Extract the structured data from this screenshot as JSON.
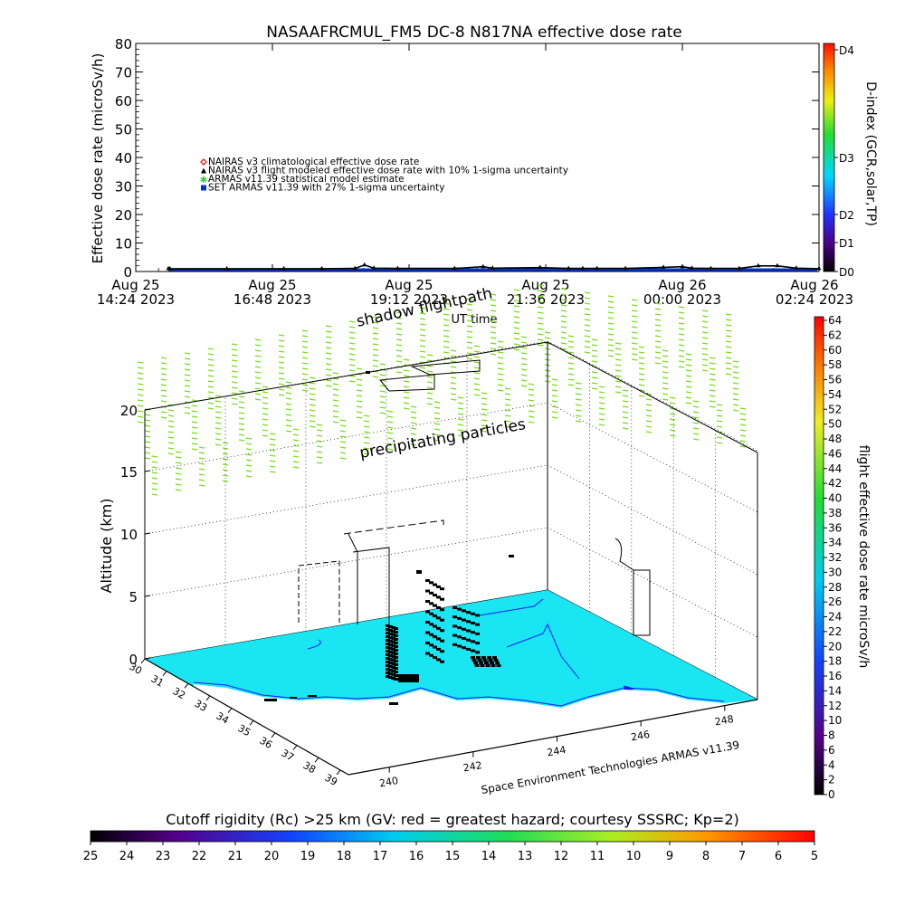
{
  "chart_data": [
    {
      "type": "line",
      "title": "NASAAFRCMUL_FM5 DC-8   N817NA effective dose rate",
      "ylabel": "Effective dose rate (microSv/h)",
      "xlabel": "UT time",
      "ylim": [
        0,
        80
      ],
      "yticks": [
        "0",
        "10",
        "20",
        "30",
        "40",
        "50",
        "60",
        "70",
        "80"
      ],
      "xticks": [
        {
          "date": "Aug 25",
          "time": "14:24 2023"
        },
        {
          "date": "Aug 25",
          "time": "16:48 2023"
        },
        {
          "date": "Aug 25",
          "time": "19:12 2023"
        },
        {
          "date": "Aug 25",
          "time": "21:36 2023"
        },
        {
          "date": "Aug 26",
          "time": "00:00 2023"
        },
        {
          "date": "Aug 26",
          "time": "02:24 2023"
        }
      ],
      "legend": [
        {
          "label": "NAIRAS v3 climatological effective dose rate",
          "color": "#ff0000",
          "symbol": "diamond"
        },
        {
          "label": "NAIRAS v3 flight modeled effective dose rate with 10% 1-sigma uncertainty",
          "color": "#000000",
          "symbol": "triangle"
        },
        {
          "label": "ARMAS v11.39 statistical model estimate",
          "color": "#33cc33",
          "symbol": "asterisk"
        },
        {
          "label": "SET ARMAS v11.39 with 27% 1-sigma uncertainty",
          "color": "#0033cc",
          "symbol": "square"
        }
      ],
      "series": [
        {
          "name": "NAIRAS v3 flight modeled effective dose rate with 10% 1-sigma uncertainty",
          "x": [
            "14:24",
            "15:00",
            "16:00",
            "17:00",
            "17:40",
            "18:15",
            "18:25",
            "18:35",
            "19:00",
            "20:00",
            "20:30",
            "20:40",
            "21:30",
            "22:00",
            "22:15",
            "22:30",
            "23:00",
            "23:40",
            "00:00",
            "00:10",
            "00:30",
            "01:00",
            "01:20",
            "01:40",
            "02:00",
            "02:24"
          ],
          "y": [
            0.5,
            0.5,
            0.5,
            0.5,
            0.5,
            0.6,
            1.8,
            0.7,
            0.6,
            0.6,
            1.2,
            0.7,
            0.9,
            0.6,
            0.6,
            0.6,
            0.6,
            1.0,
            1.2,
            0.7,
            0.6,
            0.6,
            1.5,
            1.5,
            0.7,
            0.5
          ]
        },
        {
          "name": "SET ARMAS v11.39 with 27% 1-sigma uncertainty",
          "x": [
            "14:24",
            "02:24"
          ],
          "y": [
            0.3,
            0.3
          ]
        }
      ],
      "colorbar": {
        "label": "D-index (GCR,solar,TP)",
        "ticks": [
          "D0",
          "D1",
          "D2",
          "D3",
          "D4"
        ]
      }
    },
    {
      "type": "scatter",
      "axis_title": "Altitude (km)",
      "zticks": [
        "0",
        "5",
        "10",
        "15",
        "20"
      ],
      "lat_ticks": [
        "30",
        "31",
        "32",
        "33",
        "34",
        "35",
        "36",
        "37",
        "38",
        "39"
      ],
      "lon_ticks": [
        "240",
        "242",
        "244",
        "246",
        "248"
      ],
      "labels": {
        "shadow": "shadow flightpath",
        "precip": "precipitating particles",
        "credit": "Space Environment Technologies ARMAS v11.39"
      },
      "colorbar": {
        "label": "flight effective dose rate microSv/h",
        "ticks": [
          "0",
          "2",
          "4",
          "6",
          "8",
          "10",
          "12",
          "14",
          "16",
          "18",
          "20",
          "22",
          "24",
          "26",
          "28",
          "30",
          "32",
          "34",
          "36",
          "38",
          "40",
          "42",
          "44",
          "46",
          "48",
          "50",
          "52",
          "54",
          "56",
          "58",
          "60",
          "62",
          "64"
        ]
      },
      "colors": {
        "ground": "#19e6f2",
        "coast": "#1a1aff",
        "precip": "#77dd11"
      }
    },
    {
      "type": "heatmap",
      "title": "Cutoff rigidity (Rc) >25 km (GV: red = greatest hazard; courtesy SSSRC; Kp=2)",
      "ticks": [
        "25",
        "24",
        "23",
        "22",
        "21",
        "20",
        "19",
        "18",
        "17",
        "16",
        "15",
        "14",
        "13",
        "12",
        "11",
        "10",
        "9",
        "8",
        "7",
        "6",
        "5"
      ]
    }
  ]
}
